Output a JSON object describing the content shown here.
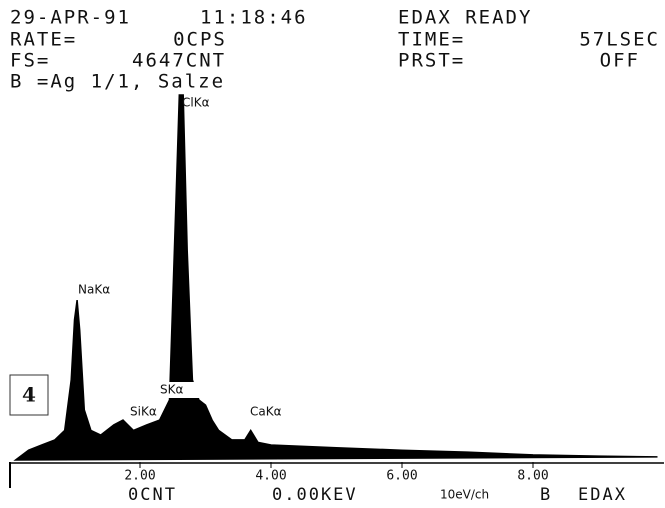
{
  "header": {
    "date": "29-APR-91",
    "time": "11:18:46",
    "status": "EDAX READY",
    "rate_label": "RATE=",
    "rate": "0CPS",
    "time_label": "TIME=",
    "live_time": "57LSEC",
    "fs_label": "FS=",
    "fs": "4647CNT",
    "prst_label": "PRST=",
    "prst": "OFF",
    "sample": "B =Ag 1/1, Salze"
  },
  "panel_number": "4",
  "chart_data": {
    "type": "area",
    "color": "#000000",
    "x": [
      0.1,
      0.3,
      0.5,
      0.7,
      0.85,
      0.95,
      1.0,
      1.04,
      1.08,
      1.15,
      1.25,
      1.4,
      1.6,
      1.74,
      1.9,
      2.1,
      2.3,
      2.45,
      2.55,
      2.6,
      2.66,
      2.72,
      2.8,
      2.9,
      3.0,
      3.1,
      3.2,
      3.4,
      3.6,
      3.69,
      3.8,
      4.0,
      5.0,
      6.0,
      7.0,
      8.0,
      9.0,
      9.9
    ],
    "values": [
      25,
      150,
      215,
      280,
      400,
      1040,
      1800,
      2050,
      1670,
      660,
      400,
      340,
      470,
      530,
      400,
      470,
      530,
      785,
      3320,
      4647,
      4647,
      2680,
      1040,
      785,
      720,
      530,
      400,
      280,
      280,
      400,
      250,
      215,
      180,
      150,
      125,
      90,
      75,
      65
    ],
    "xlim": [
      0,
      10
    ],
    "ylim": [
      0,
      4647
    ],
    "xticks": [
      {
        "value": 2,
        "label": "2.00"
      },
      {
        "value": 4,
        "label": "4.00"
      },
      {
        "value": 6,
        "label": "6.00"
      },
      {
        "value": 8,
        "label": "8.00"
      }
    ],
    "annotations": [
      "NaKα",
      "ClKα",
      "SiKα",
      "SKα",
      "CaKα"
    ]
  },
  "footer": {
    "counts": "0CNT",
    "energy": "0.00KEV",
    "scale": "10eV/ch",
    "buffer": "B",
    "brand": "EDAX"
  }
}
